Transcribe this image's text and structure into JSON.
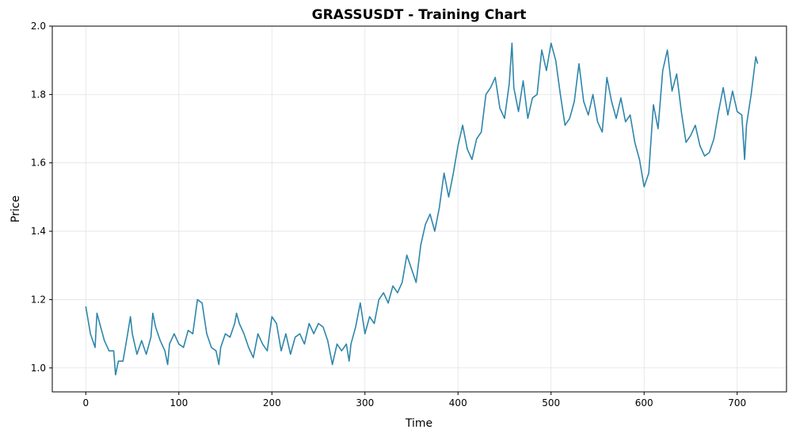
{
  "chart_data": {
    "type": "line",
    "title": "GRASSUSDT - Training Chart",
    "x_label": "Time",
    "y_label": "Price",
    "x": [
      0,
      5,
      10,
      12,
      15,
      20,
      25,
      30,
      32,
      35,
      40,
      45,
      48,
      50,
      55,
      60,
      65,
      70,
      72,
      75,
      80,
      85,
      88,
      90,
      95,
      100,
      105,
      110,
      115,
      120,
      125,
      130,
      135,
      140,
      143,
      145,
      150,
      155,
      160,
      162,
      165,
      170,
      175,
      180,
      185,
      190,
      195,
      200,
      205,
      210,
      215,
      220,
      225,
      230,
      235,
      240,
      245,
      250,
      255,
      260,
      265,
      270,
      275,
      280,
      283,
      285,
      290,
      295,
      300,
      305,
      310,
      315,
      320,
      325,
      330,
      335,
      340,
      345,
      350,
      355,
      360,
      365,
      370,
      375,
      380,
      385,
      390,
      395,
      400,
      405,
      410,
      415,
      420,
      425,
      430,
      435,
      440,
      445,
      450,
      455,
      458,
      460,
      465,
      470,
      475,
      480,
      485,
      490,
      495,
      500,
      505,
      510,
      515,
      520,
      525,
      530,
      535,
      540,
      545,
      550,
      555,
      560,
      565,
      570,
      575,
      580,
      585,
      590,
      595,
      600,
      605,
      610,
      615,
      620,
      625,
      630,
      635,
      640,
      645,
      650,
      655,
      660,
      665,
      670,
      675,
      680,
      685,
      690,
      695,
      700,
      705,
      708,
      710,
      715,
      720,
      722
    ],
    "series": [
      {
        "name": "GRASSUSDT",
        "color": "#2e86ab",
        "values": [
          1.18,
          1.1,
          1.06,
          1.16,
          1.13,
          1.08,
          1.05,
          1.05,
          0.98,
          1.02,
          1.02,
          1.1,
          1.15,
          1.1,
          1.04,
          1.08,
          1.04,
          1.09,
          1.16,
          1.12,
          1.08,
          1.05,
          1.01,
          1.07,
          1.1,
          1.07,
          1.06,
          1.11,
          1.1,
          1.2,
          1.19,
          1.1,
          1.06,
          1.05,
          1.01,
          1.06,
          1.1,
          1.09,
          1.13,
          1.16,
          1.13,
          1.1,
          1.06,
          1.03,
          1.1,
          1.07,
          1.05,
          1.15,
          1.13,
          1.05,
          1.1,
          1.04,
          1.09,
          1.1,
          1.07,
          1.13,
          1.1,
          1.13,
          1.12,
          1.08,
          1.01,
          1.07,
          1.05,
          1.07,
          1.02,
          1.07,
          1.12,
          1.19,
          1.1,
          1.15,
          1.13,
          1.2,
          1.22,
          1.19,
          1.24,
          1.22,
          1.25,
          1.33,
          1.29,
          1.25,
          1.36,
          1.42,
          1.45,
          1.4,
          1.47,
          1.57,
          1.5,
          1.57,
          1.65,
          1.71,
          1.64,
          1.61,
          1.67,
          1.69,
          1.8,
          1.82,
          1.85,
          1.76,
          1.73,
          1.83,
          1.95,
          1.82,
          1.75,
          1.84,
          1.73,
          1.79,
          1.8,
          1.93,
          1.87,
          1.95,
          1.9,
          1.8,
          1.71,
          1.73,
          1.78,
          1.89,
          1.78,
          1.74,
          1.8,
          1.72,
          1.69,
          1.85,
          1.78,
          1.73,
          1.79,
          1.72,
          1.74,
          1.66,
          1.61,
          1.53,
          1.57,
          1.77,
          1.7,
          1.87,
          1.93,
          1.81,
          1.86,
          1.75,
          1.66,
          1.68,
          1.71,
          1.65,
          1.62,
          1.63,
          1.67,
          1.75,
          1.82,
          1.74,
          1.81,
          1.75,
          1.74,
          1.61,
          1.71,
          1.8,
          1.91,
          1.89
        ]
      }
    ],
    "xlim": [
      -36,
      753
    ],
    "ylim": [
      0.93,
      2.0
    ],
    "xticks": [
      0,
      100,
      200,
      300,
      400,
      500,
      600,
      700
    ],
    "yticks": [
      {
        "value": 1.0,
        "label": "1.0"
      },
      1.2,
      1.4,
      1.6,
      1.8,
      {
        "value": 2.0,
        "label": "2.0"
      }
    ],
    "grid": true
  }
}
